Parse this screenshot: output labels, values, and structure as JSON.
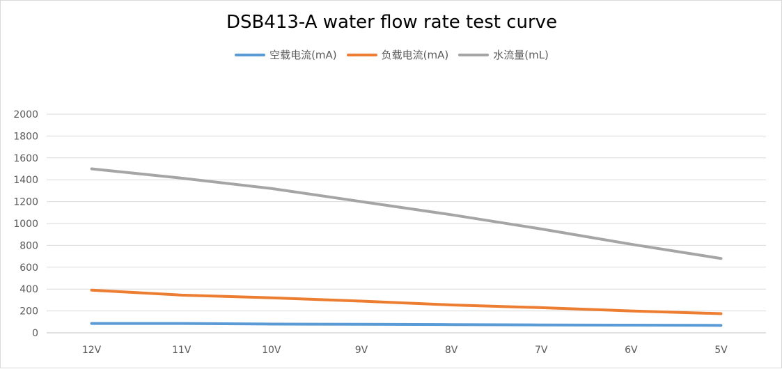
{
  "chart_data": {
    "type": "line",
    "title": "DSB413-A water flow rate test curve",
    "xlabel": "",
    "ylabel": "",
    "categories": [
      "12V",
      "11V",
      "10V",
      "9V",
      "8V",
      "7V",
      "6V",
      "5V"
    ],
    "ylim": [
      0,
      2000
    ],
    "yticks": [
      0,
      200,
      400,
      600,
      800,
      1000,
      1200,
      1400,
      1600,
      1800,
      2000
    ],
    "grid": true,
    "legend_position": "top",
    "series": [
      {
        "name": "空载电流(mA)",
        "color": "#5b9bd5",
        "values": [
          85,
          85,
          80,
          78,
          75,
          72,
          70,
          68
        ]
      },
      {
        "name": "负载电流(mA)",
        "color": "#ed7d31",
        "values": [
          390,
          345,
          320,
          290,
          255,
          230,
          200,
          175
        ]
      },
      {
        "name": "水流量(mL)",
        "color": "#a5a5a5",
        "values": [
          1500,
          1415,
          1320,
          1200,
          1080,
          950,
          810,
          680
        ]
      }
    ]
  }
}
